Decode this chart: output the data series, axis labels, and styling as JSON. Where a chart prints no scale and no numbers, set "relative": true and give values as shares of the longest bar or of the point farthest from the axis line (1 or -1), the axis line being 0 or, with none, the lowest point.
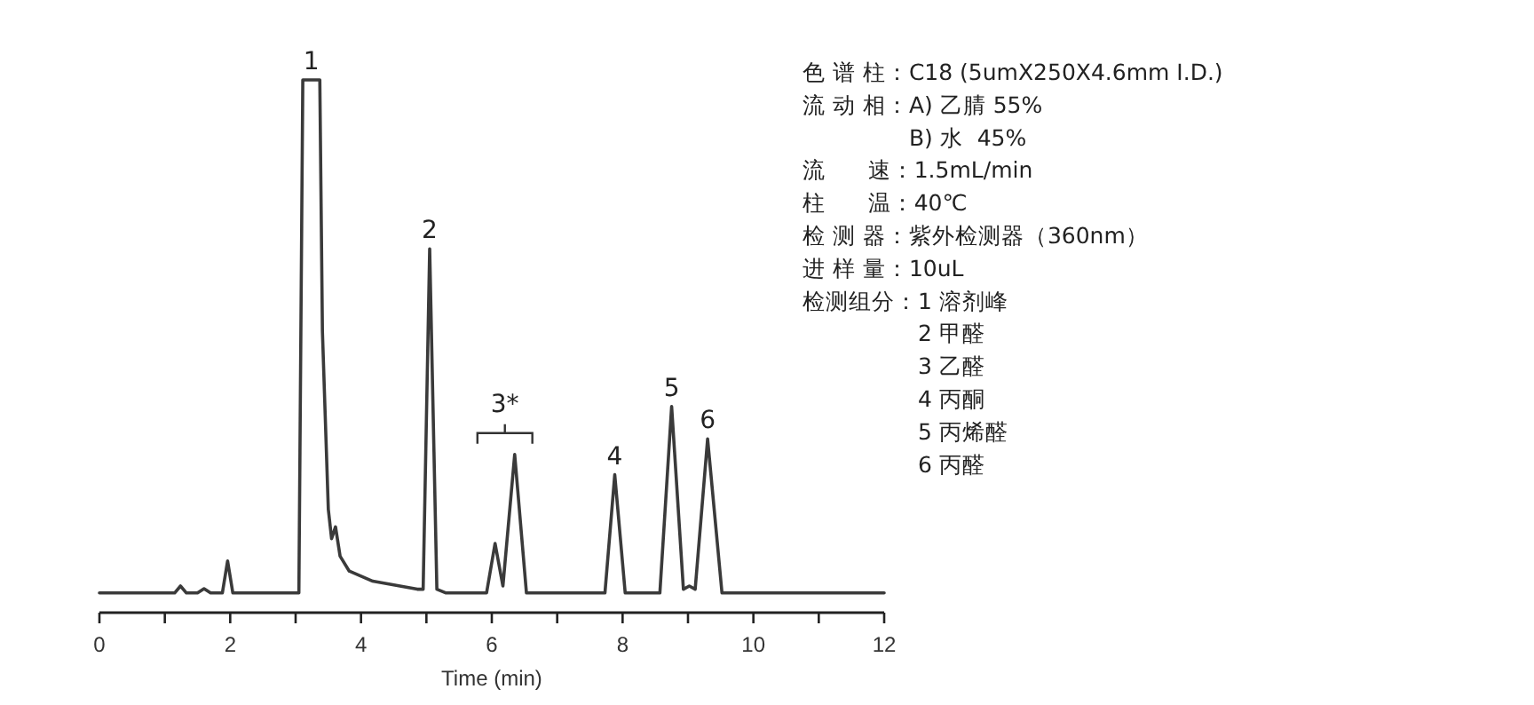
{
  "chart_data": {
    "type": "line",
    "relative": true,
    "xlabel": "Time (min)",
    "xlim": [
      0,
      12
    ],
    "xticks": [
      0,
      {
        "value": 1,
        "label": null
      },
      2,
      {
        "value": 3,
        "label": null
      },
      4,
      {
        "value": 5,
        "label": null
      },
      6,
      {
        "value": 7,
        "label": null
      },
      8,
      {
        "value": 9,
        "label": null
      },
      10,
      {
        "value": 11,
        "label": null
      },
      12
    ],
    "series": [
      {
        "color": "#3a3a3a",
        "x": [
          0,
          1.15,
          1.24,
          1.33,
          1.5,
          1.6,
          1.7,
          1.88,
          1.96,
          2.04,
          2.2,
          3.05,
          3.11,
          3.37,
          3.41,
          3.5,
          3.55,
          3.61,
          3.68,
          3.82,
          4.18,
          4.86,
          4.95,
          5.05,
          5.16,
          5.3,
          5.92,
          6.05,
          6.17,
          6.35,
          6.53,
          6.8,
          7.73,
          7.88,
          8.04,
          8.3,
          8.57,
          8.75,
          8.93,
          9.02,
          9.11,
          9.3,
          9.52,
          9.7,
          11.24,
          12
        ],
        "values": [
          0.037,
          0.037,
          0.05,
          0.037,
          0.037,
          0.045,
          0.037,
          0.037,
          0.097,
          0.037,
          0.037,
          0.037,
          1.0,
          1.0,
          0.528,
          0.194,
          0.139,
          0.161,
          0.106,
          0.078,
          0.059,
          0.044,
          0.044,
          0.683,
          0.044,
          0.037,
          0.037,
          0.13,
          0.05,
          0.297,
          0.037,
          0.037,
          0.037,
          0.259,
          0.037,
          0.037,
          0.037,
          0.387,
          0.044,
          0.05,
          0.044,
          0.326,
          0.037,
          0.037,
          0.037,
          0.037
        ]
      }
    ],
    "annotations": [
      {
        "text": "1",
        "x": 3.24,
        "y": 1.0
      },
      {
        "text": "2",
        "x": 5.05,
        "y": 0.683
      },
      {
        "text": "3*",
        "x": 6.35,
        "y": 0.297
      },
      {
        "text": "4",
        "x": 7.88,
        "y": 0.259
      },
      {
        "text": "5",
        "x": 8.75,
        "y": 0.387
      },
      {
        "text": "6",
        "x": 9.3,
        "y": 0.326
      },
      "色 谱 柱：C18 (5umX250X4.6mm I.D.)",
      "流 动 相：A) 乙腈 55%",
      "B) 水  45%",
      "流      速：1.5mL/min",
      "柱      温：40℃",
      "检 测 器：紫外检测器（360nm）",
      "进 样 量：10uL",
      "检测组分：1 溶剂峰",
      "2 甲醛",
      "3 乙醛",
      "4 丙酮",
      "5 丙烯醛",
      "6 丙醛"
    ]
  }
}
